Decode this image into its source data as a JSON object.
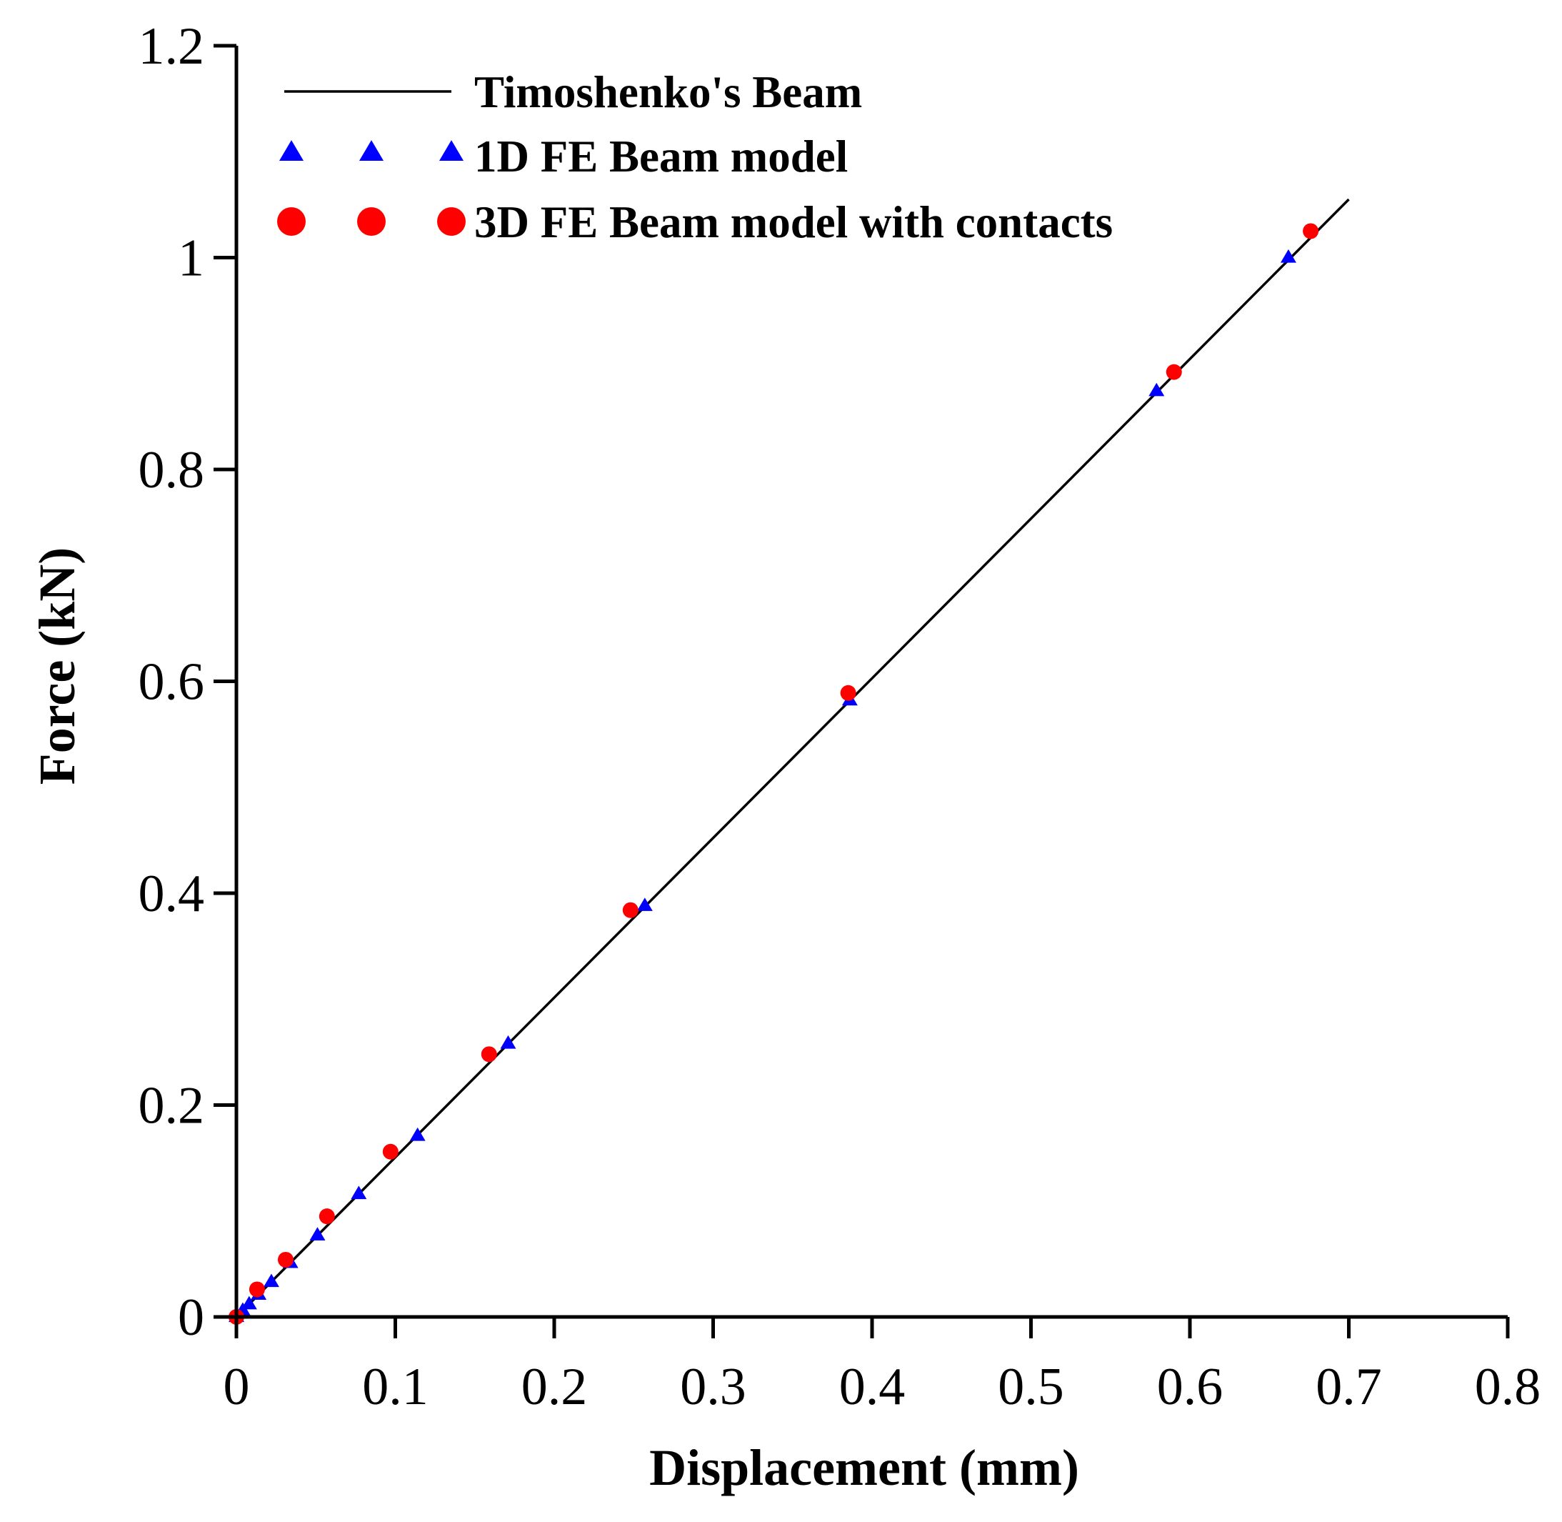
{
  "chart_data": {
    "type": "scatter",
    "title": "",
    "xlabel": "Displacement (mm)",
    "ylabel": "Force (kN)",
    "xlim": [
      0,
      0.8
    ],
    "ylim": [
      0,
      1.2
    ],
    "xticks": [
      0,
      0.1,
      0.2,
      0.3,
      0.4,
      0.5,
      0.6,
      0.7,
      0.8
    ],
    "xtick_labels": [
      "0",
      "0.1",
      "0.2",
      "0.3",
      "0.4",
      "0.5",
      "0.6",
      "0.7",
      "0.8"
    ],
    "yticks": [
      0,
      0.2,
      0.4,
      0.6,
      0.8,
      1.0,
      1.2
    ],
    "ytick_labels": [
      "0",
      "0.2",
      "0.4",
      "0.6",
      "0.8",
      "1",
      "1.2"
    ],
    "grid": false,
    "legend_position": "top-left",
    "series": [
      {
        "name": "Timoshenko's Beam",
        "kind": "line",
        "color": "#000000",
        "x": [
          0,
          0.7
        ],
        "y": [
          0,
          1.055
        ]
      },
      {
        "name": "1D FE Beam model",
        "kind": "marker",
        "marker": "triangle",
        "color": "#0000ff",
        "x": [
          0,
          0.004,
          0.008,
          0.014,
          0.022,
          0.034,
          0.051,
          0.077,
          0.114,
          0.171,
          0.257,
          0.386,
          0.579,
          0.662
        ],
        "y": [
          0,
          0.006,
          0.012,
          0.021,
          0.033,
          0.051,
          0.077,
          0.116,
          0.171,
          0.258,
          0.388,
          0.582,
          0.874,
          1.0
        ]
      },
      {
        "name": "3D FE Beam model with contacts",
        "kind": "marker",
        "marker": "circle",
        "color": "#ff0000",
        "x": [
          0,
          0.013,
          0.031,
          0.057,
          0.097,
          0.159,
          0.248,
          0.385,
          0.59,
          0.676
        ],
        "y": [
          0,
          0.026,
          0.054,
          0.095,
          0.156,
          0.248,
          0.384,
          0.589,
          0.892,
          1.025
        ]
      }
    ]
  }
}
